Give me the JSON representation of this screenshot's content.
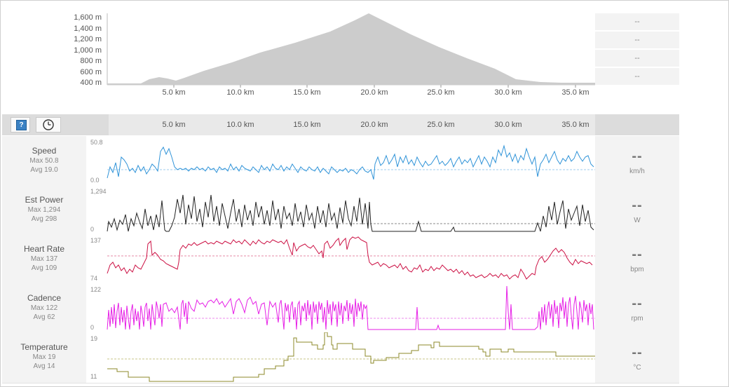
{
  "elevation": {
    "y_ticks": [
      "1,600 m",
      "1,400 m",
      "1,200 m",
      "1,000 m",
      "800 m",
      "600 m",
      "400 m"
    ],
    "x_ticks": [
      "5.0 km",
      "10.0 km",
      "15.0 km",
      "20.0 km",
      "25.0 km",
      "30.0 km",
      "35.0 km"
    ],
    "fill_color": "#cccccc",
    "side_values": [
      "--",
      "--",
      "--",
      "--"
    ]
  },
  "toolbar": {
    "help_label": "?",
    "x_ticks": [
      "5.0 km",
      "10.0 km",
      "15.0 km",
      "20.0 km",
      "25.0 km",
      "30.0 km",
      "35.0 km"
    ]
  },
  "rows": [
    {
      "title": "Speed",
      "max": "Max 50.8",
      "avg": "Avg 19.0",
      "axis_max": "50.8",
      "axis_min": "0.0",
      "value": "--",
      "unit": "km/h",
      "color": "#2f93d8"
    },
    {
      "title": "Est Power",
      "max": "Max 1,294",
      "avg": "Avg 298",
      "axis_max": "1,294",
      "axis_min": "0",
      "value": "--",
      "unit": "W",
      "color": "#222222"
    },
    {
      "title": "Heart Rate",
      "max": "Max 137",
      "avg": "Avg 109",
      "axis_max": "137",
      "axis_min": "74",
      "value": "--",
      "unit": "bpm",
      "color": "#cc1144"
    },
    {
      "title": "Cadence",
      "max": "Max 122",
      "avg": "Avg 62",
      "axis_max": "122",
      "axis_min": "0",
      "value": "--",
      "unit": "rpm",
      "color": "#e61ee6"
    },
    {
      "title": "Temperature",
      "max": "Max 19",
      "avg": "Avg 14",
      "axis_max": "19",
      "axis_min": "11",
      "value": "--",
      "unit": "°C",
      "color": "#8c8a2a"
    }
  ]
}
